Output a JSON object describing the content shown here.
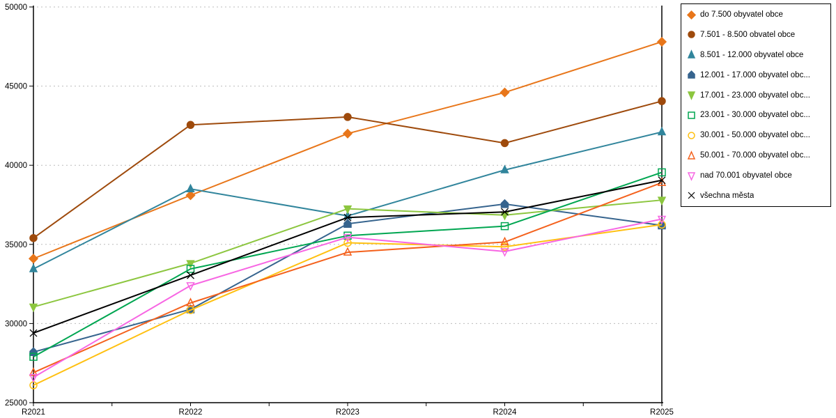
{
  "chart_data": {
    "type": "line",
    "title": "",
    "xlabel": "",
    "ylabel": "",
    "categories": [
      "R2021",
      "R2022",
      "R2023",
      "R2024",
      "R2025"
    ],
    "ylim": [
      25000,
      50000
    ],
    "y_ticks": [
      "25000",
      "30000",
      "35000",
      "40000",
      "45000",
      "50000"
    ],
    "grid": "horizontal-dotted",
    "legend_position": "right",
    "series": [
      {
        "label": "do 7.500 obyvatel obce",
        "color": "#E8761A",
        "marker": "diamond",
        "fill": "solid",
        "values": [
          34100,
          38100,
          42000,
          44600,
          47800
        ]
      },
      {
        "label": "7.501 - 8.500 obvatel obce",
        "color": "#9E4A0C",
        "marker": "circle",
        "fill": "solid",
        "values": [
          35400,
          42550,
          43050,
          41400,
          44050
        ]
      },
      {
        "label": "8.501 - 12.000 obyvatel obce",
        "color": "#31859C",
        "marker": "triangle-up",
        "fill": "solid",
        "values": [
          33450,
          38500,
          36800,
          39700,
          42100
        ]
      },
      {
        "label": "12.001 - 17.000 obyvatel obc...",
        "color": "#36648E",
        "marker": "pentagon",
        "fill": "solid",
        "values": [
          28200,
          30900,
          36300,
          37550,
          36200
        ]
      },
      {
        "label": "17.001 - 23.000 obyvatel obc...",
        "color": "#8CC63F",
        "marker": "triangle-down",
        "fill": "solid",
        "values": [
          31050,
          33800,
          37250,
          36850,
          37800
        ]
      },
      {
        "label": "23.001 - 30.000 obyvatel obc...",
        "color": "#00A651",
        "marker": "square",
        "fill": "outline",
        "values": [
          27900,
          33450,
          35550,
          36150,
          39550
        ]
      },
      {
        "label": "30.001 - 50.000 obyvatel obc...",
        "color": "#FFC011",
        "marker": "circle",
        "fill": "outline",
        "values": [
          26100,
          30850,
          35100,
          34850,
          36250
        ]
      },
      {
        "label": "50.001 - 70.000 obyvatel obc...",
        "color": "#F4611C",
        "marker": "triangle-up",
        "fill": "outline",
        "values": [
          26900,
          31300,
          34500,
          35150,
          38900
        ]
      },
      {
        "label": "nad 70.001 obyvatel obce",
        "color": "#F766E3",
        "marker": "triangle-down",
        "fill": "outline",
        "values": [
          26600,
          32400,
          35450,
          34550,
          36600
        ]
      },
      {
        "label": "všechna města",
        "color": "#000000",
        "marker": "x",
        "fill": "outline",
        "values": [
          29400,
          33050,
          36700,
          37050,
          39050
        ]
      }
    ]
  },
  "colors": {
    "background": "#FFFFFF",
    "grid": "#BBBBBB",
    "axis": "#000000",
    "legend_border": "#000000",
    "text": "#000000"
  }
}
